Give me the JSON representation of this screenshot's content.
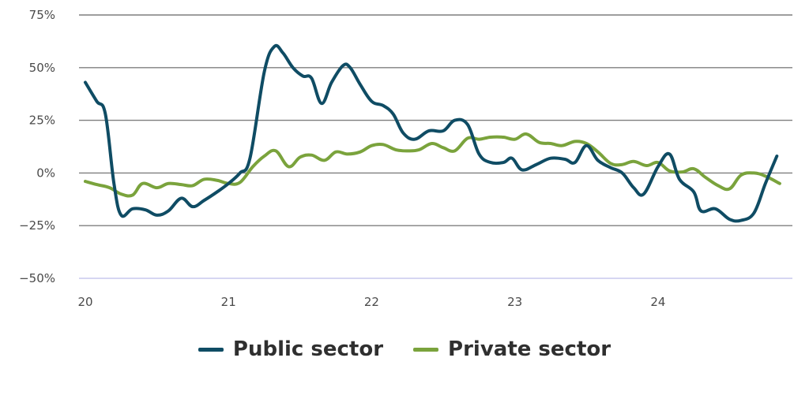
{
  "chart_data": {
    "type": "line",
    "title": "",
    "xlabel": "",
    "ylabel": "",
    "x_ticks": [
      {
        "x": 2020,
        "label": "20"
      },
      {
        "x": 2021,
        "label": "21"
      },
      {
        "x": 2022,
        "label": "22"
      },
      {
        "x": 2023,
        "label": "23"
      },
      {
        "x": 2024,
        "label": "24"
      }
    ],
    "y_ticks": [
      {
        "y": 75,
        "label": "75%"
      },
      {
        "y": 50,
        "label": "50%"
      },
      {
        "y": 25,
        "label": "25%"
      },
      {
        "y": 0,
        "label": "0%"
      },
      {
        "y": -25,
        "label": "−25%"
      },
      {
        "y": -50,
        "label": "−50%"
      }
    ],
    "xlim": [
      2020,
      2024.9
    ],
    "ylim": [
      -50,
      75
    ],
    "grid": true,
    "legend_position": "bottom-center",
    "series": [
      {
        "name": "Public sector",
        "color": "#0f4c64",
        "points": [
          [
            2020.0,
            43
          ],
          [
            2020.08,
            34
          ],
          [
            2020.14,
            28
          ],
          [
            2020.2,
            -5
          ],
          [
            2020.25,
            -20
          ],
          [
            2020.33,
            -17
          ],
          [
            2020.42,
            -17.5
          ],
          [
            2020.5,
            -20
          ],
          [
            2020.58,
            -18
          ],
          [
            2020.67,
            -12
          ],
          [
            2020.75,
            -16
          ],
          [
            2020.83,
            -13
          ],
          [
            2020.92,
            -9
          ],
          [
            2021.0,
            -5
          ],
          [
            2021.08,
            0
          ],
          [
            2021.15,
            7
          ],
          [
            2021.25,
            48
          ],
          [
            2021.32,
            60
          ],
          [
            2021.38,
            57
          ],
          [
            2021.45,
            50
          ],
          [
            2021.52,
            46
          ],
          [
            2021.58,
            45
          ],
          [
            2021.65,
            33
          ],
          [
            2021.72,
            43
          ],
          [
            2021.8,
            51
          ],
          [
            2021.85,
            50
          ],
          [
            2021.92,
            42
          ],
          [
            2022.0,
            34
          ],
          [
            2022.08,
            32
          ],
          [
            2022.15,
            28
          ],
          [
            2022.22,
            19
          ],
          [
            2022.3,
            16
          ],
          [
            2022.4,
            20
          ],
          [
            2022.5,
            20
          ],
          [
            2022.58,
            25
          ],
          [
            2022.67,
            23
          ],
          [
            2022.75,
            9
          ],
          [
            2022.83,
            5
          ],
          [
            2022.92,
            5
          ],
          [
            2022.98,
            7
          ],
          [
            2023.05,
            1.5
          ],
          [
            2023.15,
            4
          ],
          [
            2023.25,
            7
          ],
          [
            2023.35,
            6.5
          ],
          [
            2023.42,
            5
          ],
          [
            2023.5,
            13
          ],
          [
            2023.58,
            6
          ],
          [
            2023.67,
            2.5
          ],
          [
            2023.75,
            0
          ],
          [
            2023.83,
            -7
          ],
          [
            2023.9,
            -10
          ],
          [
            2024.0,
            3
          ],
          [
            2024.08,
            9
          ],
          [
            2024.15,
            -3
          ],
          [
            2024.25,
            -9
          ],
          [
            2024.3,
            -18
          ],
          [
            2024.4,
            -17
          ],
          [
            2024.5,
            -22
          ],
          [
            2024.58,
            -22.5
          ],
          [
            2024.67,
            -19
          ],
          [
            2024.75,
            -5
          ],
          [
            2024.83,
            8
          ]
        ]
      },
      {
        "name": "Private sector",
        "color": "#7aa33c",
        "points": [
          [
            2020.0,
            -4
          ],
          [
            2020.08,
            -5.5
          ],
          [
            2020.17,
            -7
          ],
          [
            2020.25,
            -10
          ],
          [
            2020.33,
            -10.5
          ],
          [
            2020.4,
            -5
          ],
          [
            2020.5,
            -7
          ],
          [
            2020.58,
            -5
          ],
          [
            2020.67,
            -5.5
          ],
          [
            2020.75,
            -6
          ],
          [
            2020.83,
            -3
          ],
          [
            2020.92,
            -3.5
          ],
          [
            2021.0,
            -5
          ],
          [
            2021.08,
            -4.5
          ],
          [
            2021.17,
            3
          ],
          [
            2021.25,
            8
          ],
          [
            2021.33,
            10.5
          ],
          [
            2021.42,
            3
          ],
          [
            2021.5,
            7.5
          ],
          [
            2021.58,
            8.5
          ],
          [
            2021.67,
            6
          ],
          [
            2021.75,
            10
          ],
          [
            2021.83,
            9
          ],
          [
            2021.92,
            10
          ],
          [
            2022.0,
            13
          ],
          [
            2022.08,
            13.5
          ],
          [
            2022.17,
            11
          ],
          [
            2022.25,
            10.5
          ],
          [
            2022.33,
            11
          ],
          [
            2022.42,
            14
          ],
          [
            2022.5,
            12
          ],
          [
            2022.58,
            10.5
          ],
          [
            2022.67,
            16.5
          ],
          [
            2022.75,
            16
          ],
          [
            2022.83,
            17
          ],
          [
            2022.92,
            17
          ],
          [
            2023.0,
            16
          ],
          [
            2023.08,
            18.5
          ],
          [
            2023.17,
            14.5
          ],
          [
            2023.25,
            14
          ],
          [
            2023.33,
            13
          ],
          [
            2023.42,
            15
          ],
          [
            2023.5,
            14
          ],
          [
            2023.58,
            10
          ],
          [
            2023.67,
            4.5
          ],
          [
            2023.75,
            4
          ],
          [
            2023.83,
            5.5
          ],
          [
            2023.92,
            3.5
          ],
          [
            2024.0,
            5
          ],
          [
            2024.08,
            1
          ],
          [
            2024.17,
            0.5
          ],
          [
            2024.25,
            2
          ],
          [
            2024.33,
            -2
          ],
          [
            2024.42,
            -6
          ],
          [
            2024.5,
            -7.5
          ],
          [
            2024.58,
            -1
          ],
          [
            2024.67,
            0
          ],
          [
            2024.75,
            -1.5
          ],
          [
            2024.85,
            -5
          ]
        ]
      }
    ]
  }
}
